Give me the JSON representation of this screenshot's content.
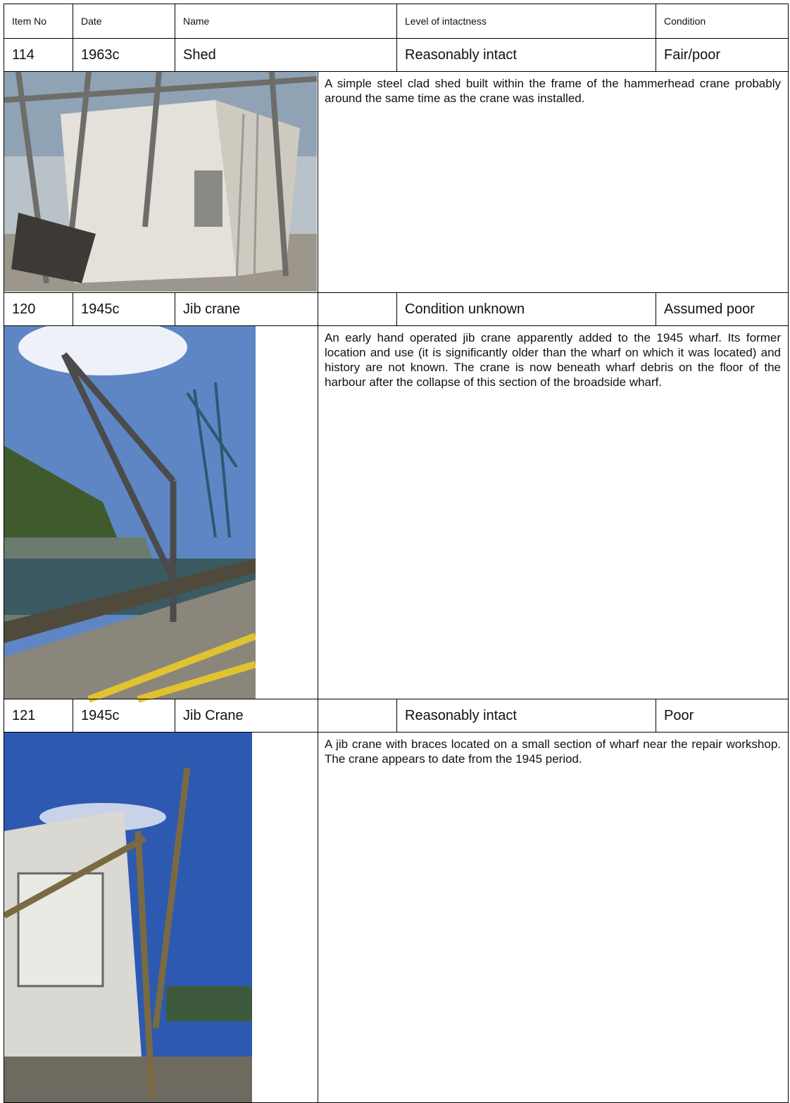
{
  "table": {
    "header": [
      "Item No",
      "Date",
      "Name",
      "Level of intactness",
      "Condition"
    ],
    "items": [
      {
        "cells": [
          "114",
          "1963c",
          "Shed",
          "Reasonably intact",
          "Fair/poor"
        ],
        "description": "A simple steel clad shed built within the frame of the hammerhead crane probably around the same time as the crane was installed."
      },
      {
        "cells": [
          "120",
          "1945c",
          "Jib crane",
          "Condition unknown",
          "Assumed poor"
        ],
        "description": "An early hand operated jib crane apparently added to the 1945 wharf.  Its former location and use (it is significantly older than the wharf on which it was located) and history are not known.  The crane is now beneath wharf debris on the floor of the harbour after the collapse of this section of the broadside wharf."
      },
      {
        "cells": [
          "121",
          "1945c",
          "Jib Crane",
          "Reasonably intact",
          "Poor"
        ],
        "description": "A jib crane with braces located on a small section of wharf near the repair workshop.  The crane appears to date from the 1945 period."
      }
    ]
  }
}
